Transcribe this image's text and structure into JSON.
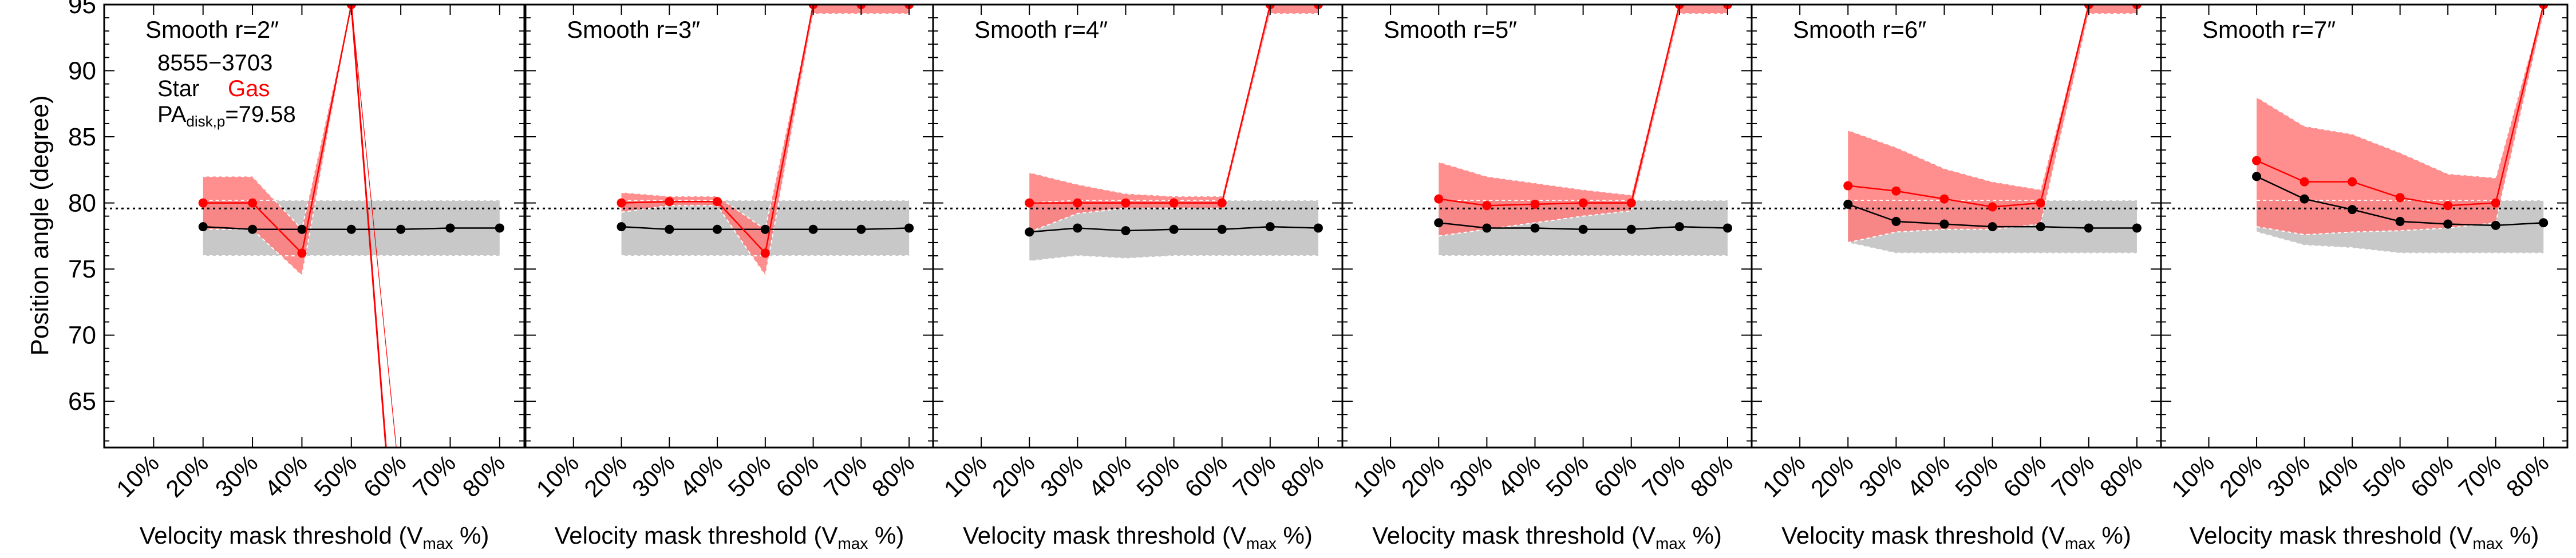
{
  "figure": {
    "ylabel": "Position angle (degree)",
    "xlabel_main": "Velocity mask threshold (V",
    "xlabel_sub": "max",
    "xlabel_end": " %)",
    "object_id": "8555−3703",
    "legend_star": "Star",
    "legend_gas": "Gas",
    "pa_main": "PA",
    "pa_sub": "disk,p",
    "pa_value": "=79.58"
  },
  "colors": {
    "star": "#000000",
    "gas": "#ff0000",
    "gas_band": "#ff7a7a",
    "star_band": "#c8c8c8",
    "reference_line": "#000000"
  },
  "chart_data": [
    {
      "type": "line",
      "title": "Smooth r=2″",
      "categories": [
        "10%",
        "20%",
        "30%",
        "40%",
        "50%",
        "60%",
        "70%",
        "80%"
      ],
      "ylim": [
        61.5,
        95
      ],
      "yticks": [
        65,
        70,
        75,
        80,
        85,
        90,
        95
      ],
      "reference_line": 79.58,
      "series": [
        {
          "name": "Star",
          "x": [
            20,
            30,
            40,
            50,
            60,
            70,
            80
          ],
          "values": [
            78.2,
            78.0,
            78.0,
            78.0,
            78.0,
            78.1,
            78.1
          ],
          "band_low": [
            76.0,
            76.0,
            76.0,
            76.0,
            76.0,
            76.0,
            76.0
          ],
          "band_high": [
            80.2,
            80.2,
            80.2,
            80.2,
            80.2,
            80.2,
            80.2
          ]
        },
        {
          "name": "Gas",
          "x": [
            20,
            30,
            40,
            50
          ],
          "values": [
            80.0,
            80.0,
            76.2,
            95.0
          ],
          "band_low": [
            78.0,
            78.0,
            74.5,
            95.0
          ],
          "band_high": [
            82.0,
            82.0,
            78.0,
            95.0
          ],
          "extra_line_x": [
            50,
            57
          ],
          "extra_line_y": [
            95.0,
            61.5
          ]
        }
      ]
    },
    {
      "type": "line",
      "title": "Smooth r=3″",
      "categories": [
        "10%",
        "20%",
        "30%",
        "40%",
        "50%",
        "60%",
        "70%",
        "80%"
      ],
      "ylim": [
        61.5,
        95
      ],
      "yticks": [
        65,
        70,
        75,
        80,
        85,
        90,
        95
      ],
      "reference_line": 79.58,
      "series": [
        {
          "name": "Star",
          "x": [
            20,
            30,
            40,
            50,
            60,
            70,
            80
          ],
          "values": [
            78.2,
            78.0,
            78.0,
            78.0,
            78.0,
            78.0,
            78.1
          ],
          "band_low": [
            76.0,
            76.0,
            76.0,
            76.0,
            76.0,
            76.0,
            76.0
          ],
          "band_high": [
            80.2,
            80.2,
            80.2,
            80.2,
            80.2,
            80.2,
            80.2
          ]
        },
        {
          "name": "Gas",
          "x": [
            20,
            30,
            40,
            50,
            60,
            70,
            80
          ],
          "values": [
            80.0,
            80.1,
            80.1,
            76.2,
            95.0,
            95.0,
            95.0
          ],
          "band_low": [
            79.3,
            79.8,
            79.8,
            74.5,
            94.3,
            94.3,
            94.3
          ],
          "band_high": [
            80.8,
            80.5,
            80.5,
            78.0,
            95.0,
            95.0,
            95.0
          ]
        }
      ]
    },
    {
      "type": "line",
      "title": "Smooth r=4″",
      "categories": [
        "10%",
        "20%",
        "30%",
        "40%",
        "50%",
        "60%",
        "70%",
        "80%"
      ],
      "ylim": [
        61.5,
        95
      ],
      "yticks": [
        65,
        70,
        75,
        80,
        85,
        90,
        95
      ],
      "reference_line": 79.58,
      "series": [
        {
          "name": "Star",
          "x": [
            20,
            30,
            40,
            50,
            60,
            70,
            80
          ],
          "values": [
            77.8,
            78.1,
            77.9,
            78.0,
            78.0,
            78.2,
            78.1
          ],
          "band_low": [
            75.6,
            76.0,
            75.8,
            76.0,
            76.0,
            76.0,
            76.0
          ],
          "band_high": [
            80.0,
            80.2,
            80.2,
            80.2,
            80.2,
            80.2,
            80.2
          ]
        },
        {
          "name": "Gas",
          "x": [
            20,
            30,
            40,
            50,
            60,
            70,
            80
          ],
          "values": [
            80.0,
            80.0,
            80.0,
            80.0,
            80.0,
            95.0,
            95.0
          ],
          "band_low": [
            77.8,
            79.2,
            79.6,
            79.6,
            79.6,
            94.3,
            94.3
          ],
          "band_high": [
            82.3,
            81.4,
            80.7,
            80.5,
            80.5,
            95.0,
            95.0
          ]
        }
      ]
    },
    {
      "type": "line",
      "title": "Smooth r=5″",
      "categories": [
        "10%",
        "20%",
        "30%",
        "40%",
        "50%",
        "60%",
        "70%",
        "80%"
      ],
      "ylim": [
        61.5,
        95
      ],
      "yticks": [
        65,
        70,
        75,
        80,
        85,
        90,
        95
      ],
      "reference_line": 79.58,
      "series": [
        {
          "name": "Star",
          "x": [
            20,
            30,
            40,
            50,
            60,
            70,
            80
          ],
          "values": [
            78.5,
            78.1,
            78.1,
            78.0,
            78.0,
            78.2,
            78.1
          ],
          "band_low": [
            76.0,
            76.0,
            76.0,
            76.0,
            76.0,
            76.0,
            76.0
          ],
          "band_high": [
            80.2,
            80.2,
            80.2,
            80.2,
            80.2,
            80.2,
            80.2
          ]
        },
        {
          "name": "Gas",
          "x": [
            20,
            30,
            40,
            50,
            60,
            70,
            80
          ],
          "values": [
            80.3,
            79.8,
            79.9,
            80.0,
            80.0,
            95.0,
            95.0
          ],
          "band_low": [
            77.5,
            78.0,
            78.5,
            79.0,
            79.4,
            94.3,
            94.3
          ],
          "band_high": [
            83.1,
            82.0,
            81.5,
            81.0,
            80.6,
            95.0,
            95.0
          ]
        }
      ]
    },
    {
      "type": "line",
      "title": "Smooth r=6″",
      "categories": [
        "10%",
        "20%",
        "30%",
        "40%",
        "50%",
        "60%",
        "70%",
        "80%"
      ],
      "ylim": [
        61.5,
        95
      ],
      "yticks": [
        65,
        70,
        75,
        80,
        85,
        90,
        95
      ],
      "reference_line": 79.58,
      "series": [
        {
          "name": "Star",
          "x": [
            20,
            30,
            40,
            50,
            60,
            70,
            80
          ],
          "values": [
            79.9,
            78.6,
            78.4,
            78.2,
            78.2,
            78.1,
            78.1
          ],
          "band_low": [
            77.0,
            76.2,
            76.2,
            76.2,
            76.2,
            76.2,
            76.2
          ],
          "band_high": [
            80.2,
            80.2,
            80.2,
            80.2,
            80.2,
            80.2,
            80.2
          ]
        },
        {
          "name": "Gas",
          "x": [
            20,
            30,
            40,
            50,
            60,
            70,
            80
          ],
          "values": [
            81.3,
            80.9,
            80.3,
            79.7,
            80.0,
            95.0,
            95.0
          ],
          "band_low": [
            77.0,
            77.8,
            78.0,
            78.0,
            78.4,
            94.3,
            94.3
          ],
          "band_high": [
            85.5,
            84.2,
            82.6,
            81.6,
            81.0,
            95.0,
            95.0
          ]
        }
      ]
    },
    {
      "type": "line",
      "title": "Smooth r=7″",
      "categories": [
        "10%",
        "20%",
        "30%",
        "40%",
        "50%",
        "60%",
        "70%",
        "80%"
      ],
      "ylim": [
        61.5,
        95
      ],
      "yticks": [
        65,
        70,
        75,
        80,
        85,
        90,
        95
      ],
      "reference_line": 79.58,
      "series": [
        {
          "name": "Star",
          "x": [
            20,
            30,
            40,
            50,
            60,
            70,
            80
          ],
          "values": [
            82.0,
            80.3,
            79.5,
            78.6,
            78.4,
            78.3,
            78.5
          ],
          "band_low": [
            77.8,
            76.8,
            76.6,
            76.2,
            76.2,
            76.2,
            76.2
          ],
          "band_high": [
            80.2,
            80.2,
            80.2,
            80.2,
            80.2,
            80.2,
            80.2
          ]
        },
        {
          "name": "Gas",
          "x": [
            20,
            30,
            40,
            50,
            60,
            70,
            80
          ],
          "values": [
            83.2,
            81.6,
            81.6,
            80.4,
            79.8,
            80.0,
            95.0
          ],
          "band_low": [
            78.2,
            77.6,
            77.8,
            77.9,
            78.1,
            78.5,
            94.3
          ],
          "band_high": [
            88.0,
            85.8,
            85.2,
            83.8,
            82.2,
            81.9,
            95.0
          ]
        }
      ]
    }
  ]
}
